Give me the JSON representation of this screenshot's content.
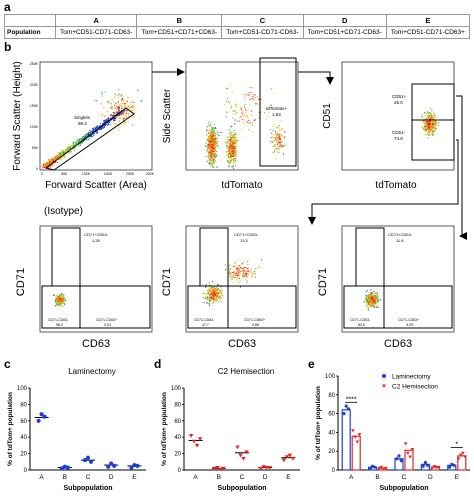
{
  "panel_labels": {
    "a": "a",
    "b": "b",
    "c": "c",
    "d": "d",
    "e": "e"
  },
  "table": {
    "row_header": "Population",
    "columns": [
      "A",
      "B",
      "C",
      "D",
      "E"
    ],
    "values": [
      "Tom+CD51-CD71-CD63-",
      "Tom+CD51+CD71+CD63-",
      "Tom+CD51-CD71-CD63-",
      "Tom+CD51+CD71-CD63-",
      "Tom+CD51-CD71-CD63+"
    ]
  },
  "flow": {
    "p1": {
      "ylabel": "Forward Scatter (Height)",
      "xlabel": "Forward Scatter (Area)",
      "gate_name": "Singlets",
      "gate_value": "98.2",
      "yticks": [
        "250K",
        "200K",
        "150K",
        "100K",
        "50K",
        "0"
      ],
      "xticks": [
        "0",
        "50K",
        "100K",
        "150K",
        "200K",
        "250K"
      ]
    },
    "p2": {
      "ylabel": "Side Scatter",
      "xlabel": "tdTomato",
      "gate_name": "tdTomato+",
      "gate_value": "1.53"
    },
    "p3": {
      "ylabel": "CD51",
      "xlabel": "tdTomato",
      "gate_hi_name": "CD51+",
      "gate_hi_value": "25.0",
      "gate_lo_name": "CD51-",
      "gate_lo_value": "74.9"
    },
    "isotype_label": "(Isotype)",
    "q1": {
      "ylabel": "CD71",
      "xlabel": "CD63",
      "g_top_name": "CD71+CD63-",
      "g_top_value": "1.26",
      "g_bl_name": "CD71-CD63-",
      "g_bl_value": "98.2",
      "g_br_name": "CD71-CD63+",
      "g_br_value": "0.23"
    },
    "q2": {
      "ylabel": "CD71",
      "xlabel": "CD63",
      "g_top_name": "CD71+CD63-",
      "g_top_value": "13.3",
      "g_bl_name": "CD71-CD63-",
      "g_bl_value": "47.7",
      "g_br_name": "CD71-CD63+",
      "g_br_value": "9.86"
    },
    "q3": {
      "ylabel": "CD71",
      "xlabel": "CD63",
      "g_top_name": "CD71+CD63-",
      "g_top_value": "11.8",
      "g_bl_name": "CD71-CD63-",
      "g_bl_value": "83.8",
      "g_br_name": "CD71-CD63+",
      "g_br_value": "3.29"
    }
  },
  "colors": {
    "laminectomy": "#1f3fd6",
    "hemisection": "#e02828"
  },
  "chart_data": [
    {
      "type": "scatter",
      "title": "Laminectomy",
      "xlabel": "Subpopulation",
      "ylabel": "% of tdTom+ population",
      "categories": [
        "A",
        "B",
        "C",
        "D",
        "E"
      ],
      "yticks": [
        "0",
        "20",
        "40",
        "60",
        "80",
        "100"
      ],
      "ylim": [
        0,
        100
      ],
      "series": [
        {
          "values": [
            [
              60,
              68,
              65
            ],
            [
              2,
              4,
              3
            ],
            [
              12,
              15,
              10
            ],
            [
              4,
              8,
              5
            ],
            [
              3,
              6,
              5
            ]
          ],
          "means": [
            64,
            3,
            12,
            6,
            5
          ]
        }
      ]
    },
    {
      "type": "scatter",
      "title": "C2 Hemisection",
      "xlabel": "Subpopulation",
      "ylabel": "% of tdTom+ population",
      "categories": [
        "A",
        "B",
        "C",
        "D",
        "E"
      ],
      "yticks": [
        "0",
        "20",
        "40",
        "60",
        "80",
        "100"
      ],
      "ylim": [
        0,
        100
      ],
      "series": [
        {
          "values": [
            [
              42,
              35,
              30,
              38
            ],
            [
              2,
              3,
              1,
              2
            ],
            [
              28,
              18,
              14,
              22
            ],
            [
              2,
              4,
              3,
              3
            ],
            [
              12,
              16,
              18,
              14
            ]
          ],
          "means": [
            36,
            2,
            21,
            3,
            15
          ]
        }
      ]
    },
    {
      "type": "bar",
      "xlabel": "Subpopulation",
      "ylabel": "% of tdTom+ population",
      "categories": [
        "A",
        "B",
        "C",
        "D",
        "E"
      ],
      "yticks": [
        "0",
        "20",
        "40",
        "60",
        "80",
        "100"
      ],
      "ylim": [
        0,
        100
      ],
      "legend": "top-right",
      "series": [
        {
          "name": "Laminectomy",
          "values": [
            64,
            3,
            12,
            6,
            5
          ],
          "points": [
            [
              60,
              68,
              65
            ],
            [
              2,
              4,
              3
            ],
            [
              12,
              15,
              10
            ],
            [
              4,
              8,
              5
            ],
            [
              3,
              6,
              5
            ]
          ]
        },
        {
          "name": "C2 Hemisection",
          "values": [
            36,
            2,
            21,
            3,
            15
          ],
          "points": [
            [
              42,
              35,
              30,
              38
            ],
            [
              2,
              3,
              1,
              2
            ],
            [
              28,
              18,
              14,
              22
            ],
            [
              2,
              4,
              3,
              3
            ],
            [
              12,
              16,
              18,
              14
            ]
          ]
        }
      ],
      "annotations": [
        {
          "text": "****",
          "between": "A"
        },
        {
          "text": "*",
          "between": "E"
        }
      ]
    }
  ]
}
